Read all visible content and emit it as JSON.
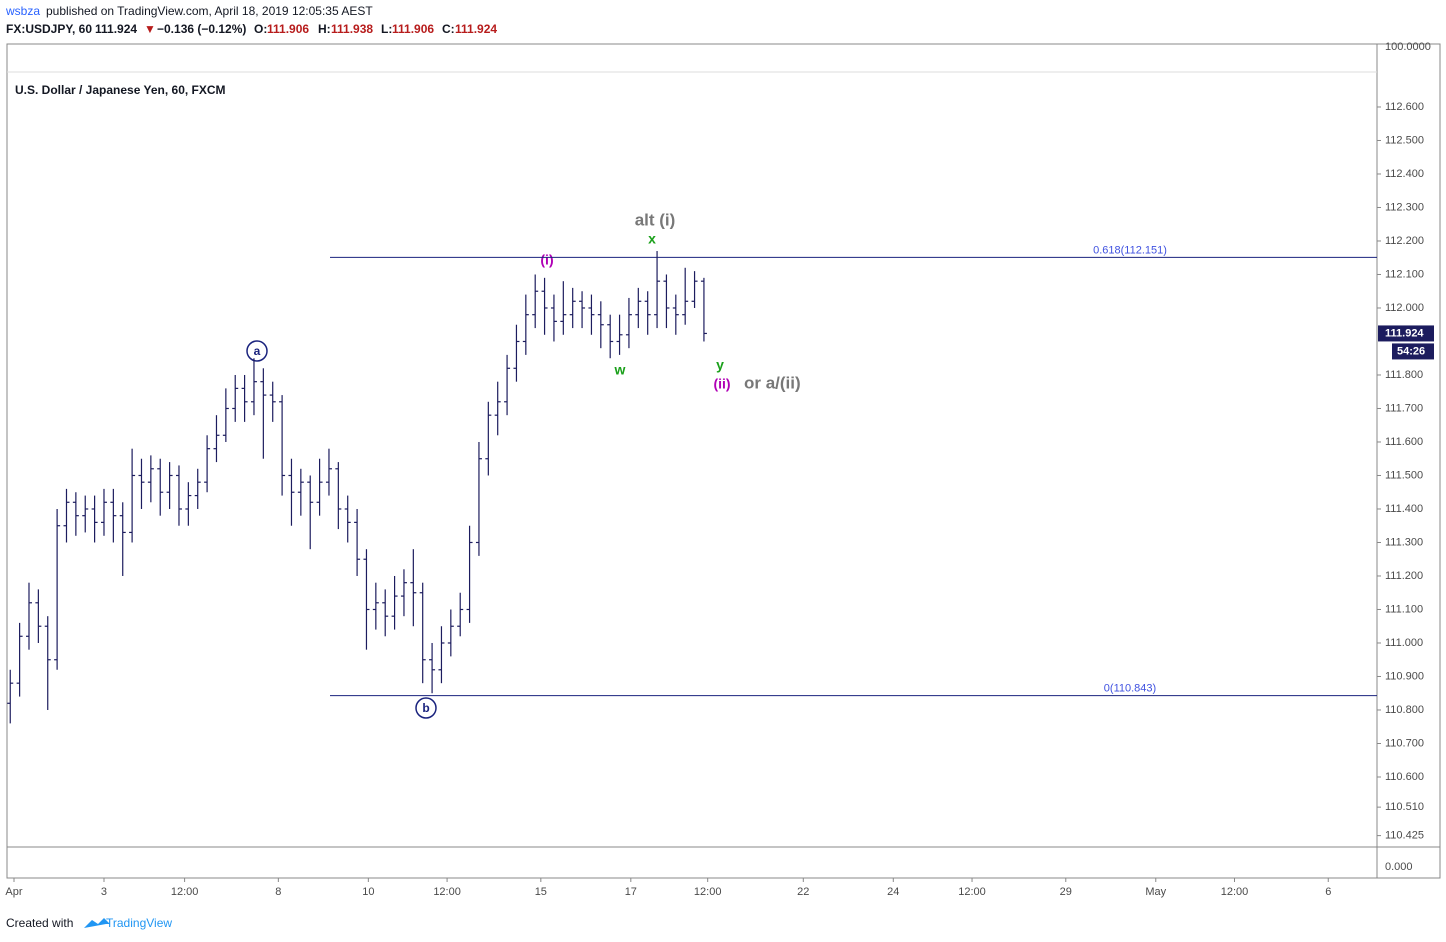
{
  "header": {
    "author": "wsbza",
    "published": "published on TradingView.com, April 18, 2019 12:05:35 AEST",
    "symbol": "FX:USDJPY, 60",
    "price": "111.924",
    "arrow": "▼",
    "change": "−0.136 (−0.12%)",
    "o_label": "O:",
    "o": "111.906",
    "h_label": "H:",
    "h": "111.938",
    "l_label": "L:",
    "l": "111.906",
    "c_label": "C:",
    "c": "111.924"
  },
  "footer": {
    "created": "Created with",
    "brand": "TradingView"
  },
  "chart_data": {
    "type": "ohlc",
    "title": "U.S. Dollar / Japanese Yen, 60, FXCM",
    "color": "#1c1c5e",
    "x": [
      -2,
      3,
      8,
      13,
      18,
      23,
      28,
      33,
      38,
      43,
      48,
      53,
      58,
      63,
      68,
      73,
      78,
      83,
      88,
      93,
      98,
      103,
      108,
      113,
      118,
      123,
      128,
      133,
      138,
      143,
      148,
      153,
      158,
      163,
      168,
      173,
      178,
      183,
      188,
      193,
      198,
      203,
      208,
      213,
      218,
      223,
      228,
      233,
      238,
      243,
      248,
      253,
      258,
      263,
      268,
      273,
      278,
      283,
      288,
      293,
      298,
      303,
      308,
      313,
      318,
      323,
      328,
      333,
      338,
      343,
      348,
      353,
      358,
      363,
      368
    ],
    "open": [
      110.82,
      110.88,
      111.02,
      111.12,
      111.05,
      110.95,
      111.35,
      111.42,
      111.38,
      111.4,
      111.36,
      111.42,
      111.38,
      111.33,
      111.5,
      111.48,
      111.52,
      111.45,
      111.5,
      111.4,
      111.44,
      111.48,
      111.58,
      111.62,
      111.7,
      111.76,
      111.72,
      111.78,
      111.74,
      111.72,
      111.5,
      111.45,
      111.48,
      111.42,
      111.48,
      111.52,
      111.4,
      111.36,
      111.25,
      111.1,
      111.12,
      111.08,
      111.14,
      111.18,
      111.15,
      110.95,
      110.92,
      111.0,
      111.05,
      111.1,
      111.3,
      111.55,
      111.68,
      111.72,
      111.82,
      111.9,
      111.98,
      112.05,
      112.0,
      111.96,
      111.98,
      112.02,
      112.0,
      111.98,
      111.95,
      111.9,
      111.92,
      111.98,
      112.02,
      111.98,
      112.08,
      112.0,
      111.98,
      112.02,
      112.08
    ],
    "high": [
      110.92,
      111.06,
      111.18,
      111.16,
      111.08,
      111.4,
      111.46,
      111.45,
      111.44,
      111.44,
      111.46,
      111.46,
      111.42,
      111.58,
      111.55,
      111.56,
      111.55,
      111.54,
      111.53,
      111.48,
      111.52,
      111.62,
      111.68,
      111.76,
      111.8,
      111.8,
      111.85,
      111.82,
      111.78,
      111.74,
      111.55,
      111.52,
      111.5,
      111.55,
      111.58,
      111.54,
      111.44,
      111.4,
      111.28,
      111.18,
      111.16,
      111.2,
      111.22,
      111.28,
      111.18,
      111.0,
      111.05,
      111.1,
      111.15,
      111.35,
      111.6,
      111.72,
      111.78,
      111.86,
      111.95,
      112.04,
      112.1,
      112.09,
      112.04,
      112.08,
      112.06,
      112.05,
      112.04,
      112.02,
      111.98,
      111.98,
      112.03,
      112.06,
      112.05,
      112.17,
      112.1,
      112.04,
      112.12,
      112.11,
      112.09
    ],
    "low": [
      110.76,
      110.84,
      110.98,
      111.0,
      110.8,
      110.92,
      111.3,
      111.32,
      111.33,
      111.3,
      111.32,
      111.3,
      111.2,
      111.3,
      111.4,
      111.42,
      111.38,
      111.4,
      111.35,
      111.35,
      111.4,
      111.45,
      111.54,
      111.6,
      111.66,
      111.66,
      111.68,
      111.55,
      111.66,
      111.44,
      111.35,
      111.38,
      111.28,
      111.38,
      111.44,
      111.34,
      111.3,
      111.2,
      110.98,
      111.04,
      111.02,
      111.04,
      111.08,
      111.05,
      110.88,
      110.85,
      110.88,
      110.96,
      111.02,
      111.06,
      111.26,
      111.5,
      111.62,
      111.68,
      111.78,
      111.86,
      111.94,
      111.92,
      111.9,
      111.92,
      111.94,
      111.94,
      111.92,
      111.88,
      111.85,
      111.86,
      111.88,
      111.94,
      111.92,
      111.94,
      111.94,
      111.92,
      111.95,
      112.0,
      111.9
    ],
    "close": [
      110.88,
      111.02,
      111.12,
      111.05,
      110.95,
      111.35,
      111.42,
      111.38,
      111.4,
      111.36,
      111.42,
      111.38,
      111.33,
      111.5,
      111.48,
      111.52,
      111.45,
      111.5,
      111.4,
      111.44,
      111.48,
      111.58,
      111.62,
      111.7,
      111.76,
      111.72,
      111.78,
      111.74,
      111.72,
      111.5,
      111.45,
      111.48,
      111.42,
      111.48,
      111.52,
      111.4,
      111.36,
      111.25,
      111.1,
      111.12,
      111.08,
      111.14,
      111.18,
      111.15,
      110.95,
      110.92,
      111.0,
      111.05,
      111.1,
      111.3,
      111.55,
      111.68,
      111.72,
      111.82,
      111.9,
      111.98,
      112.05,
      112.0,
      111.96,
      111.98,
      112.02,
      112.0,
      111.98,
      111.95,
      111.9,
      111.92,
      111.98,
      112.02,
      111.98,
      112.08,
      112.0,
      111.98,
      112.02,
      112.08,
      111.924
    ],
    "xlim": [
      -3.73,
      727
    ],
    "ylim": [
      110.391,
      112.788
    ],
    "yticks": [
      {
        "value": 112.6,
        "label": "112.600"
      },
      {
        "value": 112.5,
        "label": "112.500"
      },
      {
        "value": 112.4,
        "label": "112.400"
      },
      {
        "value": 112.3,
        "label": "112.300"
      },
      {
        "value": 112.2,
        "label": "112.200"
      },
      {
        "value": 112.1,
        "label": "112.100"
      },
      {
        "value": 112.0,
        "label": "112.000"
      },
      {
        "value": 111.8,
        "label": "111.800"
      },
      {
        "value": 111.7,
        "label": "111.700"
      },
      {
        "value": 111.6,
        "label": "111.600"
      },
      {
        "value": 111.5,
        "label": "111.500"
      },
      {
        "value": 111.4,
        "label": "111.400"
      },
      {
        "value": 111.3,
        "label": "111.300"
      },
      {
        "value": 111.2,
        "label": "111.200"
      },
      {
        "value": 111.1,
        "label": "111.100"
      },
      {
        "value": 111.0,
        "label": "111.000"
      },
      {
        "value": 110.9,
        "label": "110.900"
      },
      {
        "value": 110.8,
        "label": "110.800"
      },
      {
        "value": 110.7,
        "label": "110.700"
      },
      {
        "value": 110.6,
        "label": "110.600"
      },
      {
        "value": 110.51,
        "label": "110.510"
      },
      {
        "value": 110.425,
        "label": "110.425"
      }
    ],
    "xticks": [
      {
        "value": 0,
        "label": "Apr"
      },
      {
        "value": 48,
        "label": "3"
      },
      {
        "value": 91,
        "label": "12:00"
      },
      {
        "value": 141,
        "label": "8"
      },
      {
        "value": 189,
        "label": "10"
      },
      {
        "value": 231,
        "label": "12:00"
      },
      {
        "value": 281,
        "label": "15"
      },
      {
        "value": 329,
        "label": "17"
      },
      {
        "value": 370,
        "label": "12:00"
      },
      {
        "value": 421,
        "label": "22"
      },
      {
        "value": 469,
        "label": "24"
      },
      {
        "value": 511,
        "label": "12:00"
      },
      {
        "value": 561,
        "label": "29"
      },
      {
        "value": 609,
        "label": "May"
      },
      {
        "value": 651,
        "label": "12:00"
      },
      {
        "value": 701,
        "label": "6"
      }
    ],
    "last_price": 111.924,
    "countdown": "54:26",
    "fib_levels": [
      {
        "value": 112.151,
        "label": "0.618(112.151)"
      },
      {
        "value": 110.843,
        "label": "0(110.843)"
      }
    ],
    "top_axis_label": "100.0000",
    "indicator_axis_label": "0.000",
    "waves": {
      "a": "a",
      "b": "b",
      "i": "(i)",
      "alt": "alt (i)",
      "x": "x",
      "w": "w",
      "y": "y",
      "ii": "(ii)",
      "or": "or a/(ii)"
    }
  }
}
